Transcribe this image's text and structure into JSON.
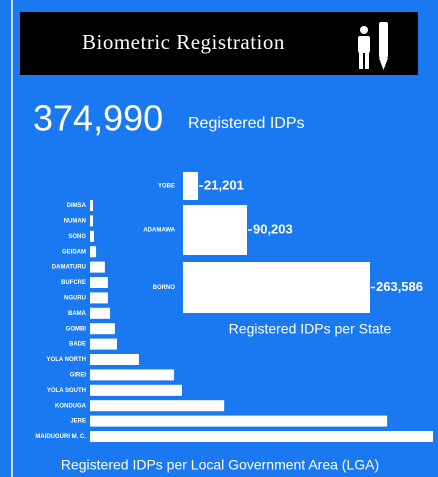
{
  "header": {
    "title": "Biometric Registration",
    "total": "374,990",
    "total_label": "Registered IDPs"
  },
  "chart_data": [
    {
      "type": "hbar",
      "title": "Registered IDPs per State",
      "categories": [
        "YOBE",
        "ADAMAWA",
        "BORNO"
      ],
      "values": [
        21201,
        90203,
        263586
      ],
      "value_labels": [
        "21,201",
        "90,203",
        "263,586"
      ],
      "color": "#ffffff"
    },
    {
      "type": "hbar",
      "title": "Registered IDPs per Local Government Area (LGA)",
      "categories": [
        "DIMSA",
        "NUMAN",
        "SONG",
        "GEIDAM",
        "DAMATURU",
        "BUFCRE",
        "NGURU",
        "BAMA",
        "GOMBI",
        "BADE",
        "YOLA NORTH",
        "GIREI",
        "YOLA SOUTH",
        "KONDUGA",
        "JERE",
        "MAIDUGURI M. C."
      ],
      "values": [
        1000,
        1000,
        1300,
        2000,
        4900,
        5900,
        5900,
        6600,
        8200,
        8900,
        16100,
        27700,
        30300,
        44200,
        97900,
        113000
      ],
      "color": "#ffffff"
    }
  ]
}
